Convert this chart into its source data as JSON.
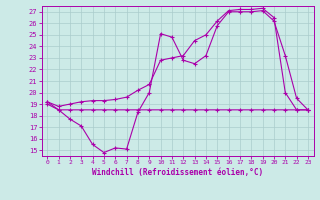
{
  "xlabel": "Windchill (Refroidissement éolien,°C)",
  "xlim": [
    -0.5,
    23.5
  ],
  "ylim": [
    14.5,
    27.5
  ],
  "xticks": [
    0,
    1,
    2,
    3,
    4,
    5,
    6,
    7,
    8,
    9,
    10,
    11,
    12,
    13,
    14,
    15,
    16,
    17,
    18,
    19,
    20,
    21,
    22,
    23
  ],
  "yticks": [
    15,
    16,
    17,
    18,
    19,
    20,
    21,
    22,
    23,
    24,
    25,
    26,
    27
  ],
  "bg_color": "#cceae7",
  "line_color": "#aa00aa",
  "grid_color": "#aacccc",
  "line1_x": [
    0,
    1,
    2,
    3,
    4,
    5,
    6,
    7,
    8,
    9,
    10,
    11,
    12,
    13,
    14,
    15,
    16,
    17,
    18,
    19,
    20,
    21,
    22,
    23
  ],
  "line1_y": [
    19.0,
    18.5,
    17.7,
    17.1,
    15.5,
    14.8,
    15.2,
    15.1,
    18.3,
    20.0,
    25.1,
    24.8,
    22.8,
    22.5,
    23.2,
    25.8,
    27.0,
    27.0,
    27.0,
    27.1,
    26.2,
    23.2,
    19.5,
    18.5
  ],
  "line2_x": [
    0,
    1,
    2,
    3,
    4,
    5,
    6,
    7,
    8,
    9,
    10,
    11,
    12,
    13,
    14,
    15,
    16,
    17,
    18,
    19,
    20,
    21,
    22,
    23
  ],
  "line2_y": [
    19.2,
    18.8,
    19.0,
    19.2,
    19.3,
    19.3,
    19.4,
    19.6,
    20.2,
    20.7,
    22.8,
    23.0,
    23.2,
    24.5,
    25.0,
    26.2,
    27.1,
    27.2,
    27.2,
    27.3,
    26.5,
    20.0,
    18.5,
    18.5
  ],
  "line3_x": [
    0,
    1,
    2,
    3,
    4,
    5,
    6,
    7,
    8,
    9,
    10,
    11,
    12,
    13,
    14,
    15,
    16,
    17,
    18,
    19,
    20,
    21,
    22,
    23
  ],
  "line3_y": [
    19.2,
    18.5,
    18.5,
    18.5,
    18.5,
    18.5,
    18.5,
    18.5,
    18.5,
    18.5,
    18.5,
    18.5,
    18.5,
    18.5,
    18.5,
    18.5,
    18.5,
    18.5,
    18.5,
    18.5,
    18.5,
    18.5,
    18.5,
    18.5
  ]
}
